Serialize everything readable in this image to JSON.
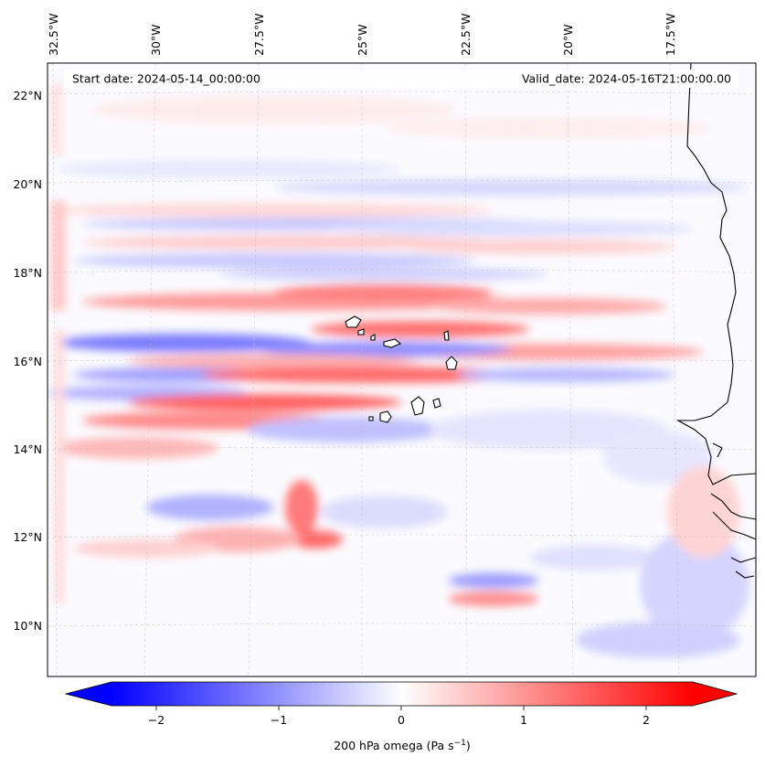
{
  "map": {
    "start_date_label": "Start date: 2024-05-14_00:00:00",
    "valid_date_label": "Valid_date: 2024-05-16T21:00:00.00",
    "lon_labels": [
      "32.5°W",
      "30°W",
      "27.5°W",
      "25°W",
      "22.5°W",
      "20°W",
      "17.5°W"
    ],
    "lat_labels": [
      "22°N",
      "20°N",
      "18°N",
      "16°N",
      "14°N",
      "12°N",
      "10°N"
    ],
    "field": "200 hPa omega",
    "colors": {
      "negative": "#0000ff",
      "zero": "#ffffff",
      "positive": "#ff0000",
      "coast": "#000000"
    }
  },
  "colorbar": {
    "label_main": "200 hPa omega (Pa s",
    "label_exp": "−1",
    "label_close": ")",
    "ticks": [
      "−2",
      "−1",
      "0",
      "1",
      "2"
    ],
    "range": [
      -2.75,
      2.75
    ],
    "extend": "both"
  }
}
